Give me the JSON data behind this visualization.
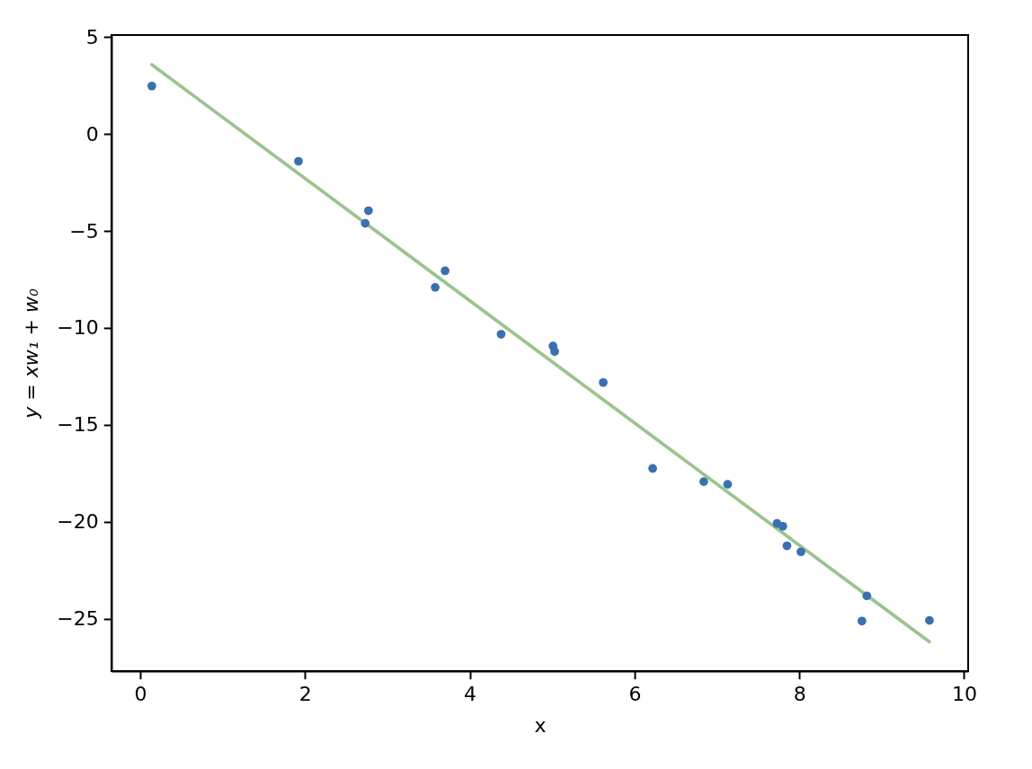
{
  "chart_data": {
    "type": "scatter",
    "xlabel": "x",
    "ylabel": "y = xw₁ + w₀",
    "xlim": [
      -0.35,
      10.05
    ],
    "ylim": [
      -27.7,
      5.1
    ],
    "xticks": [
      0,
      2,
      4,
      6,
      8,
      10
    ],
    "yticks": [
      -25,
      -20,
      -15,
      -10,
      -5,
      0,
      5
    ],
    "grid": false,
    "series": [
      {
        "type": "line",
        "color": "#9bc48e",
        "line_style": "solid",
        "x": [
          0.14,
          9.58
        ],
        "values": [
          3.57,
          -26.19
        ]
      },
      {
        "color": "#3b70b0",
        "marker": "circle",
        "x": [
          0.14,
          1.92,
          2.73,
          2.77,
          3.58,
          3.7,
          4.38,
          5.01,
          5.03,
          5.62,
          6.22,
          6.84,
          7.13,
          7.73,
          7.8,
          7.85,
          8.02,
          8.76,
          8.82,
          9.58
        ],
        "values": [
          2.47,
          -1.41,
          -4.61,
          -3.96,
          -7.91,
          -7.06,
          -10.33,
          -10.94,
          -11.22,
          -12.82,
          -17.25,
          -17.93,
          -18.07,
          -20.09,
          -20.23,
          -21.24,
          -21.55,
          -25.12,
          -23.82,
          -25.09
        ]
      }
    ]
  }
}
